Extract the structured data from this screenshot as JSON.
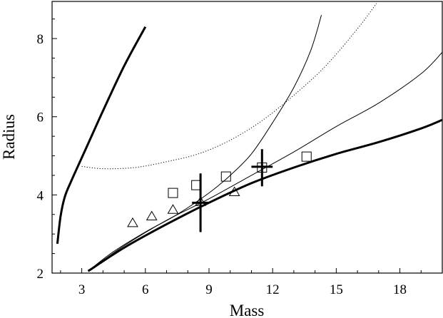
{
  "chart_data": {
    "type": "line",
    "title": "",
    "xlabel": "Mass",
    "ylabel": "Radius",
    "xlim": [
      1.6,
      20
    ],
    "ylim": [
      2,
      8.95
    ],
    "x_ticks": [
      3,
      6,
      9,
      12,
      15,
      18
    ],
    "y_ticks": [
      2,
      4,
      6,
      8
    ],
    "grid": false,
    "series": [
      {
        "style": "thick",
        "x": [
          1.85,
          2.0,
          2.2,
          2.5,
          3.0,
          3.5,
          4.0,
          5.0,
          6.0
        ],
        "y": [
          2.75,
          3.45,
          3.95,
          4.35,
          4.95,
          5.55,
          6.15,
          7.3,
          8.3
        ]
      },
      {
        "style": "thin",
        "x": [
          3.3,
          4.5,
          6.0,
          7.5,
          9.0,
          10.0,
          11.0,
          12.0,
          13.0,
          13.8,
          14.3
        ],
        "y": [
          2.05,
          2.55,
          3.05,
          3.5,
          4.05,
          4.5,
          5.05,
          5.85,
          6.75,
          7.7,
          8.6
        ]
      },
      {
        "style": "dotted",
        "x": [
          3.0,
          4.0,
          5.5,
          7.0,
          8.5,
          10.0,
          11.5,
          13.0,
          14.5,
          16.0,
          16.9
        ],
        "y": [
          4.73,
          4.67,
          4.7,
          4.85,
          5.05,
          5.4,
          5.9,
          6.55,
          7.3,
          8.25,
          8.9
        ]
      },
      {
        "style": "thin",
        "x": [
          3.3,
          5.0,
          7.0,
          9.0,
          11.0,
          13.0,
          15.0,
          17.0,
          19.0,
          20.0
        ],
        "y": [
          2.05,
          2.7,
          3.35,
          3.9,
          4.5,
          5.1,
          5.75,
          6.35,
          7.1,
          7.65
        ]
      },
      {
        "style": "thick",
        "x": [
          3.3,
          5.0,
          7.0,
          9.0,
          11.0,
          13.0,
          15.0,
          17.0,
          19.0,
          20.0
        ],
        "y": [
          2.05,
          2.65,
          3.25,
          3.8,
          4.3,
          4.7,
          5.05,
          5.35,
          5.7,
          5.92
        ]
      }
    ],
    "squares": [
      {
        "x": 7.3,
        "y": 4.05
      },
      {
        "x": 8.4,
        "y": 4.25
      },
      {
        "x": 9.8,
        "y": 4.47
      },
      {
        "x": 11.5,
        "y": 4.7
      },
      {
        "x": 13.6,
        "y": 4.98
      }
    ],
    "triangles": [
      {
        "x": 5.4,
        "y": 3.28
      },
      {
        "x": 6.3,
        "y": 3.45
      },
      {
        "x": 7.3,
        "y": 3.62
      },
      {
        "x": 8.6,
        "y": 3.82
      },
      {
        "x": 10.2,
        "y": 4.07
      }
    ],
    "error_points": [
      {
        "x": 8.6,
        "y": 3.8,
        "x_err": 0.4,
        "y_err_low": 0.75,
        "y_err_high": 0.75
      },
      {
        "x": 11.5,
        "y": 4.72,
        "x_err": 0.5,
        "y_err_low": 0.5,
        "y_err_high": 0.45
      }
    ]
  }
}
